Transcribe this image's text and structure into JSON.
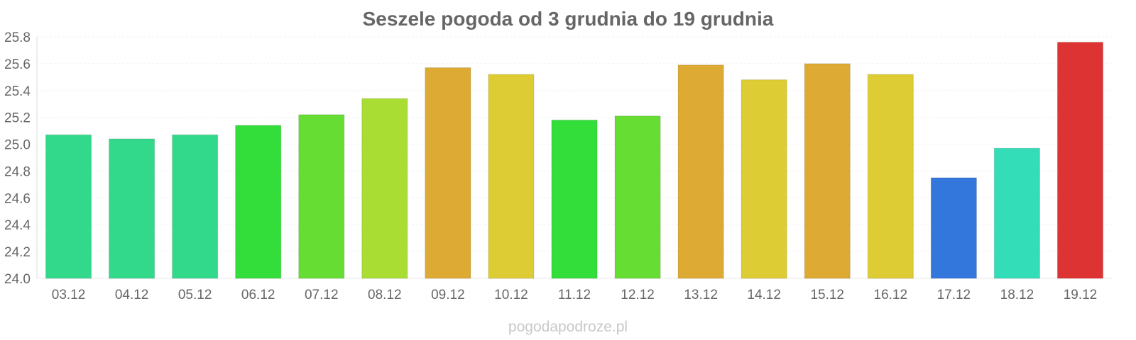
{
  "chart_data": {
    "type": "bar",
    "title": "Seszele pogoda od 3 grudnia do 19 grudnia",
    "xlabel": "",
    "ylabel": "",
    "ylim": [
      24.0,
      25.8
    ],
    "yticks": [
      "24.0",
      "24.2",
      "24.4",
      "24.6",
      "24.8",
      "25.0",
      "25.2",
      "25.4",
      "25.6",
      "25.8"
    ],
    "grid": true,
    "categories": [
      "03.12",
      "04.12",
      "05.12",
      "06.12",
      "07.12",
      "08.12",
      "09.12",
      "10.12",
      "11.12",
      "12.12",
      "13.12",
      "14.12",
      "15.12",
      "16.12",
      "17.12",
      "18.12",
      "19.12"
    ],
    "values": [
      25.07,
      25.04,
      25.07,
      25.14,
      25.22,
      25.34,
      25.57,
      25.52,
      25.18,
      25.21,
      25.59,
      25.48,
      25.6,
      25.52,
      24.75,
      24.97,
      25.76
    ],
    "colors": [
      "#33d98a",
      "#33d98a",
      "#33d98a",
      "#33dd3a",
      "#66dd33",
      "#aadd33",
      "#ddaa33",
      "#ddcc33",
      "#33dd3a",
      "#66dd33",
      "#ddaa33",
      "#ddcc33",
      "#ddaa33",
      "#ddcc33",
      "#3377dd",
      "#33ddb8",
      "#dd3333"
    ]
  },
  "watermark": "pogodapodroze.pl"
}
